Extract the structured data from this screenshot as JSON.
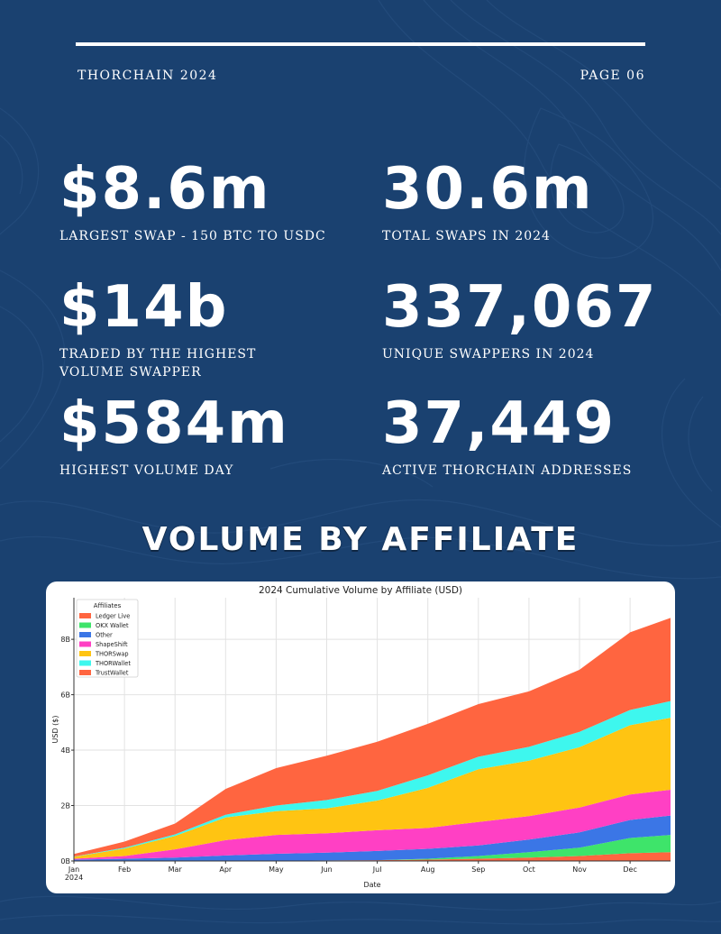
{
  "header": {
    "left": "THORCHAIN 2024",
    "right": "PAGE 06"
  },
  "stats": [
    {
      "value": "$8.6m",
      "label": "LARGEST SWAP - 150 BTC TO USDC"
    },
    {
      "value": "30.6m",
      "label": "TOTAL SWAPS IN 2024"
    },
    {
      "value": "$14b",
      "label": "TRADED BY THE HIGHEST\nVOLUME SWAPPER"
    },
    {
      "value": "337,067",
      "label": "UNIQUE SWAPPERS IN 2024"
    },
    {
      "value": "$584m",
      "label": "HIGHEST VOLUME DAY"
    },
    {
      "value": "37,449",
      "label": "ACTIVE THORCHAIN ADDRESSES"
    }
  ],
  "section_title": "VOLUME BY AFFILIATE",
  "chart_data": {
    "type": "area",
    "title": "2024 Cumulative Volume by Affiliate (USD)",
    "xlabel": "Date",
    "ylabel": "USD ($)",
    "ylim": [
      0,
      9.5
    ],
    "yticks": [
      0,
      2,
      4,
      6,
      8
    ],
    "ytick_labels": [
      "0B",
      "2B",
      "4B",
      "6B",
      "8B"
    ],
    "x_month_index": [
      0,
      1,
      2,
      3,
      4,
      5,
      6,
      7,
      8,
      9,
      10,
      11,
      11.8
    ],
    "xtick_labels": [
      "Jan\n2024",
      "Feb",
      "Mar",
      "Apr",
      "May",
      "Jun",
      "Jul",
      "Aug",
      "Sep",
      "Oct",
      "Nov",
      "Dec"
    ],
    "legend_title": "Affiliates",
    "legend_position": "top-left",
    "grid": true,
    "series": [
      {
        "name": "Ledger Live",
        "color": "#ff6540",
        "values": [
          0,
          0,
          0,
          0,
          0.01,
          0.02,
          0.03,
          0.05,
          0.08,
          0.12,
          0.18,
          0.28,
          0.32
        ]
      },
      {
        "name": "OKX Wallet",
        "color": "#3ee46a",
        "values": [
          0,
          0,
          0,
          0,
          0,
          0,
          0,
          0.03,
          0.1,
          0.2,
          0.3,
          0.55,
          0.62
        ]
      },
      {
        "name": "Other",
        "color": "#3b76e6",
        "values": [
          0.05,
          0.08,
          0.12,
          0.2,
          0.25,
          0.28,
          0.33,
          0.36,
          0.38,
          0.45,
          0.55,
          0.65,
          0.7
        ]
      },
      {
        "name": "ShapeShift",
        "color": "#ff40c4",
        "values": [
          0.03,
          0.1,
          0.3,
          0.55,
          0.68,
          0.7,
          0.75,
          0.75,
          0.85,
          0.85,
          0.9,
          0.92,
          0.93
        ]
      },
      {
        "name": "THORSwap",
        "color": "#ffc412",
        "values": [
          0.07,
          0.27,
          0.48,
          0.82,
          0.86,
          0.9,
          1.07,
          1.45,
          1.9,
          2.0,
          2.18,
          2.5,
          2.6
        ]
      },
      {
        "name": "THORWallet",
        "color": "#3ef7ee",
        "values": [
          0.01,
          0.03,
          0.06,
          0.1,
          0.2,
          0.3,
          0.35,
          0.45,
          0.45,
          0.5,
          0.55,
          0.55,
          0.6
        ]
      },
      {
        "name": "TrustWallet",
        "color": "#ff6540",
        "values": [
          0.09,
          0.22,
          0.39,
          0.93,
          1.35,
          1.6,
          1.77,
          1.86,
          1.9,
          2.0,
          2.24,
          2.8,
          3.0
        ]
      }
    ]
  }
}
